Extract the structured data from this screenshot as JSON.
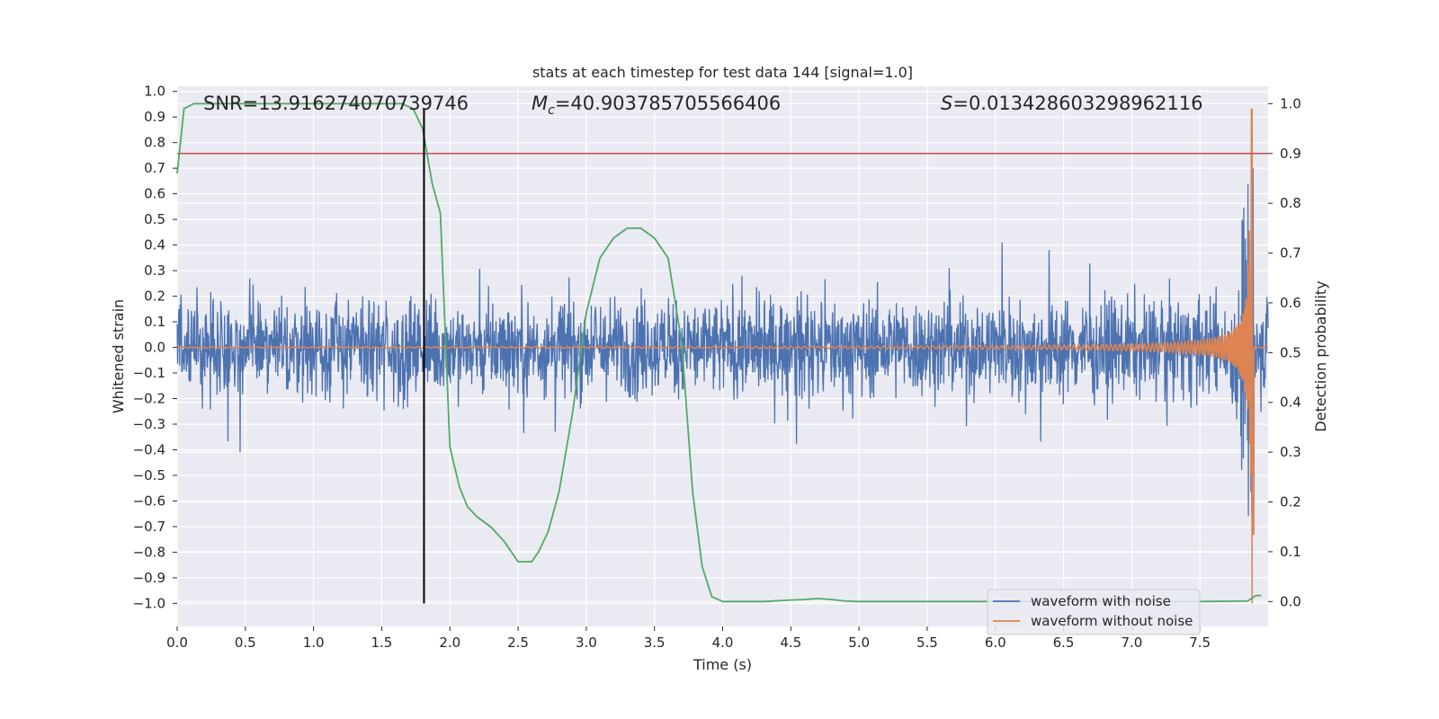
{
  "chart_data": {
    "type": "line",
    "title": "stats at each timestep for test data 144 [signal=1.0]",
    "xlabel": "Time (s)",
    "ylabel_left": "Whitened strain",
    "ylabel_right": "Detection probability",
    "xlim": [
      0,
      8.0
    ],
    "ylim_left": [
      -1.09,
      1.02
    ],
    "ylim_right": [
      -0.05,
      1.035
    ],
    "x_ticks": [
      0.0,
      0.5,
      1.0,
      1.5,
      2.0,
      2.5,
      3.0,
      3.5,
      4.0,
      4.5,
      5.0,
      5.5,
      6.0,
      6.5,
      7.0,
      7.5
    ],
    "x_tick_labels": [
      "0.0",
      "0.5",
      "1.0",
      "1.5",
      "2.0",
      "2.5",
      "3.0",
      "3.5",
      "4.0",
      "4.5",
      "5.0",
      "5.5",
      "6.0",
      "6.5",
      "7.0",
      "7.5"
    ],
    "y_left_ticks": [
      1.0,
      0.9,
      0.8,
      0.7,
      0.6,
      0.5,
      0.4,
      0.3,
      0.2,
      0.1,
      0.0,
      -0.1,
      -0.2,
      -0.3,
      -0.4,
      -0.5,
      -0.6,
      -0.7,
      -0.8,
      -0.9,
      -1.0
    ],
    "y_left_tick_labels": [
      "1.0",
      "0.9",
      "0.8",
      "0.7",
      "0.6",
      "0.5",
      "0.4",
      "0.3",
      "0.2",
      "0.1",
      "0.0",
      "−0.1",
      "−0.2",
      "−0.3",
      "−0.4",
      "−0.5",
      "−0.6",
      "−0.7",
      "−0.8",
      "−0.9",
      "−1.0"
    ],
    "y_right_ticks": [
      1.0,
      0.9,
      0.8,
      0.7,
      0.6,
      0.5,
      0.4,
      0.3,
      0.2,
      0.1,
      0.0
    ],
    "y_right_tick_labels": [
      "1.0",
      "0.9",
      "0.8",
      "0.7",
      "0.6",
      "0.5",
      "0.4",
      "0.3",
      "0.2",
      "0.1",
      "0.0"
    ],
    "grid": true,
    "legend_position": "lower right",
    "annotations": {
      "snr": "SNR=13.916274070739746",
      "mc_symbol": "M",
      "mc_sub": "c",
      "mc_value": "=40.903785705566406",
      "s_symbol": "S",
      "s_value": "=0.013428603298962116"
    },
    "threshold_line": {
      "axis": "right",
      "y": 0.9,
      "color": "#c44e52"
    },
    "vertical_marker": {
      "x": 1.81,
      "y_from": -1.0,
      "y_to": 0.93,
      "color": "#000000"
    },
    "series": [
      {
        "name": "waveform with noise",
        "color": "#4c72b0",
        "axis": "left",
        "kind": "noise",
        "x_range": [
          0.0,
          8.0
        ],
        "typical_amplitude": 0.17,
        "peak_amplitude": 0.41,
        "merger_time": 7.88,
        "merger_peak": 0.8,
        "merger_trough": -0.86
      },
      {
        "name": "waveform without noise",
        "color": "#dd8452",
        "axis": "left",
        "kind": "chirp",
        "x_range": [
          0.0,
          8.0
        ],
        "merger_time": 7.88,
        "merger_peak": 0.93,
        "merger_trough": -1.0
      },
      {
        "color": "#55a868",
        "axis": "right",
        "kind": "line",
        "x": [
          0.0,
          0.05,
          0.12,
          0.2,
          0.5,
          1.0,
          1.5,
          1.65,
          1.73,
          1.8,
          1.87,
          1.93,
          2.0,
          2.07,
          2.13,
          2.2,
          2.3,
          2.4,
          2.5,
          2.6,
          2.65,
          2.72,
          2.8,
          2.9,
          3.0,
          3.1,
          3.2,
          3.3,
          3.4,
          3.5,
          3.6,
          3.7,
          3.78,
          3.85,
          3.92,
          4.0,
          4.3,
          4.5,
          4.6,
          4.65,
          4.7,
          4.75,
          4.8,
          4.9,
          5.0,
          5.5,
          6.0,
          6.5,
          7.0,
          7.5,
          7.85,
          7.91,
          7.95
        ],
        "y": [
          0.86,
          0.99,
          1.0,
          1.0,
          1.0,
          1.0,
          1.0,
          1.0,
          0.99,
          0.95,
          0.84,
          0.78,
          0.31,
          0.23,
          0.19,
          0.17,
          0.15,
          0.12,
          0.08,
          0.08,
          0.1,
          0.14,
          0.22,
          0.38,
          0.58,
          0.69,
          0.73,
          0.75,
          0.75,
          0.73,
          0.69,
          0.52,
          0.22,
          0.07,
          0.01,
          0.0,
          0.0,
          0.003,
          0.004,
          0.005,
          0.006,
          0.005,
          0.004,
          0.001,
          0.0,
          0.0,
          0.0,
          0.0,
          0.0,
          0.0,
          0.001,
          0.012,
          0.012
        ]
      }
    ]
  }
}
